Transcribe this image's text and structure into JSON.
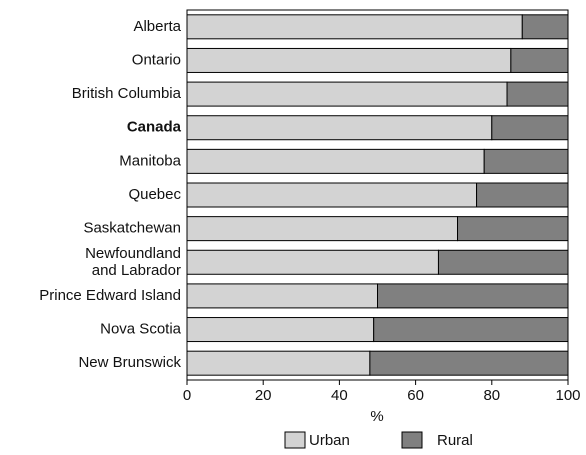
{
  "chart_data": {
    "type": "stacked-bar-horizontal",
    "categories": [
      "Alberta",
      "Ontario",
      "British Columbia",
      "Canada",
      "Manitoba",
      "Quebec",
      "Saskatchewan",
      "Newfoundland\nand Labrador",
      "Prince Edward Island",
      "Nova Scotia",
      "New Brunswick"
    ],
    "bold_categories": [
      3
    ],
    "series": [
      {
        "name": "Urban",
        "color": "#d3d3d3",
        "values": [
          88,
          85,
          84,
          80,
          78,
          76,
          71,
          66,
          50,
          49,
          48
        ]
      },
      {
        "name": "Rural",
        "color": "#808080",
        "values": [
          12,
          15,
          16,
          20,
          22,
          24,
          29,
          34,
          50,
          51,
          52
        ]
      }
    ],
    "x_label": "%",
    "xlim": [
      0,
      100
    ],
    "xticks": [
      0,
      20,
      40,
      60,
      80,
      100
    ],
    "legend": "bottom"
  }
}
